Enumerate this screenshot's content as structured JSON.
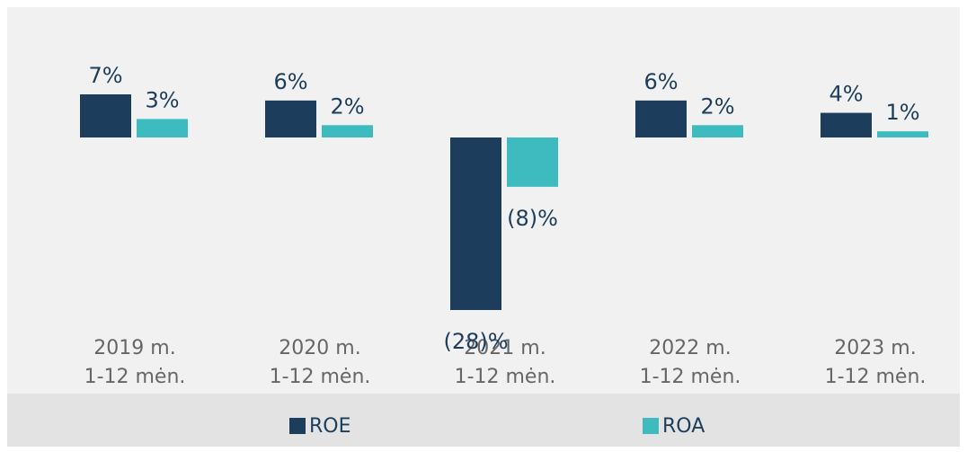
{
  "chart_data": {
    "type": "bar",
    "categories": [
      [
        "2019 m.",
        "1-12 mėn."
      ],
      [
        "2020 m.",
        "1-12 mėn."
      ],
      [
        "2021 m.",
        "1-12 mėn."
      ],
      [
        "2022 m.",
        "1-12 mėn."
      ],
      [
        "2023 m.",
        "1-12 mėn."
      ]
    ],
    "series": [
      {
        "name": "ROE",
        "color": "#1d3d5c",
        "values": [
          7,
          6,
          -28,
          6,
          4
        ],
        "value_labels": [
          "7%",
          "6%",
          "(28)%",
          "6%",
          "4%"
        ]
      },
      {
        "name": "ROA",
        "color": "#3dbbbf",
        "values": [
          3,
          2,
          -8,
          2,
          1
        ],
        "value_labels": [
          "3%",
          "2%",
          "(8)%",
          "2%",
          "1%"
        ]
      }
    ]
  }
}
